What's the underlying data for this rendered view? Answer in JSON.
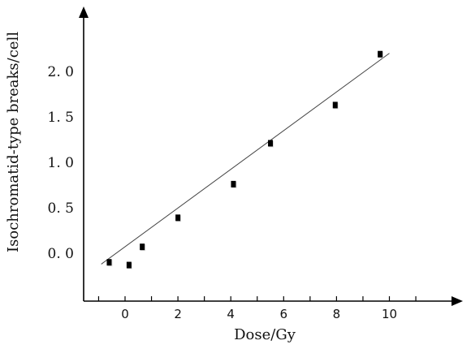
{
  "chart_data": {
    "type": "scatter",
    "title": "",
    "xlabel": "Dose/Gy",
    "ylabel": "Isochromatid-type breaks/cell",
    "x_ticks": [
      {
        "value": 0,
        "label": "0"
      },
      {
        "value": 2,
        "label": "2"
      },
      {
        "value": 4,
        "label": "4"
      },
      {
        "value": 6,
        "label": "6"
      },
      {
        "value": 8,
        "label": "8"
      },
      {
        "value": 10,
        "label": "10"
      }
    ],
    "y_ticks": [
      {
        "value": 0.0,
        "label": "0. 0"
      },
      {
        "value": 0.5,
        "label": "0. 5"
      },
      {
        "value": 1.0,
        "label": "1. 0"
      },
      {
        "value": 1.5,
        "label": "1. 5"
      },
      {
        "value": 2.0,
        "label": "2. 0"
      }
    ],
    "xlim": [
      -1.5,
      12.5
    ],
    "ylim": [
      -0.27,
      2.65
    ],
    "grid": false,
    "points": [
      {
        "x": -0.6,
        "y": -0.1
      },
      {
        "x": 0.15,
        "y": -0.13
      },
      {
        "x": 0.65,
        "y": 0.07
      },
      {
        "x": 2.0,
        "y": 0.39
      },
      {
        "x": 4.1,
        "y": 0.76
      },
      {
        "x": 5.5,
        "y": 1.21
      },
      {
        "x": 7.95,
        "y": 1.63
      },
      {
        "x": 9.65,
        "y": 2.19
      }
    ],
    "fit_line": {
      "x": [
        -0.9,
        10.0
      ],
      "y": [
        -0.12,
        2.2
      ]
    },
    "colors": {
      "marker": "#000000",
      "line": "#444444",
      "axis": "#000000"
    }
  }
}
